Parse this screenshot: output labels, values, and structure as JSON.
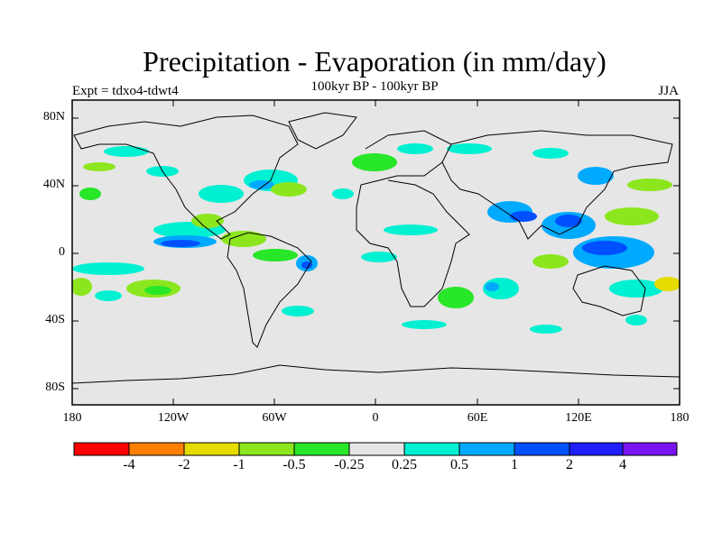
{
  "title": "Precipitation - Evaporation (in mm/day)",
  "subtitle": "100kyr BP - 100kyr BP",
  "left_label": "Expt = tdxo4-tdwt4",
  "right_label": "JJA",
  "axes": {
    "x_ticks": [
      "180",
      "120W",
      "60W",
      "0",
      "60E",
      "120E",
      "180"
    ],
    "y_ticks": [
      "80N",
      "40N",
      "0",
      "40S",
      "80S"
    ]
  },
  "colorbar": {
    "colors": [
      "#ff0000",
      "#ff7f00",
      "#e6dc00",
      "#8ce61e",
      "#28e628",
      "#e6e6e6",
      "#00f0d2",
      "#00aaff",
      "#0050ff",
      "#1e1eff",
      "#7814f0"
    ],
    "labels": [
      "-4",
      "-2",
      "-1",
      "-0.5",
      "-0.25",
      "0.25",
      "0.5",
      "1",
      "2",
      "4"
    ]
  },
  "map": {
    "ocean_color": "#e6e6e6",
    "coast_color": "#000000"
  }
}
